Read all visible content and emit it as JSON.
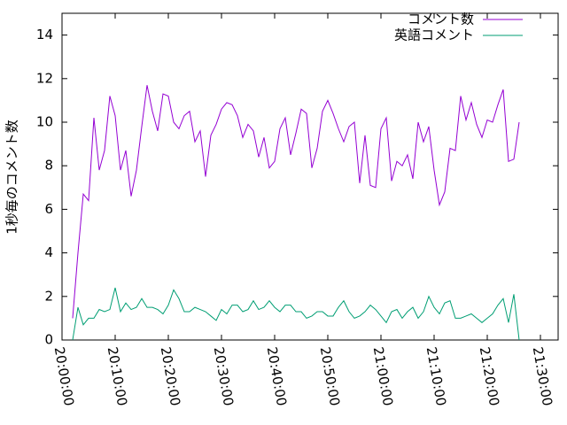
{
  "chart_data": {
    "type": "line",
    "y_label": "1秒毎のコメント数",
    "x": [
      "20:02:00",
      "20:03:00",
      "20:04:00",
      "20:05:00",
      "20:06:00",
      "20:07:00",
      "20:08:00",
      "20:09:00",
      "20:10:00",
      "20:11:00",
      "20:12:00",
      "20:13:00",
      "20:14:00",
      "20:15:00",
      "20:16:00",
      "20:17:00",
      "20:18:00",
      "20:19:00",
      "20:20:00",
      "20:21:00",
      "20:22:00",
      "20:23:00",
      "20:24:00",
      "20:25:00",
      "20:26:00",
      "20:27:00",
      "20:28:00",
      "20:29:00",
      "20:30:00",
      "20:31:00",
      "20:32:00",
      "20:33:00",
      "20:34:00",
      "20:35:00",
      "20:36:00",
      "20:37:00",
      "20:38:00",
      "20:39:00",
      "20:40:00",
      "20:41:00",
      "20:42:00",
      "20:43:00",
      "20:44:00",
      "20:45:00",
      "20:46:00",
      "20:47:00",
      "20:48:00",
      "20:49:00",
      "20:50:00",
      "20:51:00",
      "20:52:00",
      "20:53:00",
      "20:54:00",
      "20:55:00",
      "20:56:00",
      "20:57:00",
      "20:58:00",
      "20:59:00",
      "21:00:00",
      "21:01:00",
      "21:02:00",
      "21:03:00",
      "21:04:00",
      "21:05:00",
      "21:06:00",
      "21:07:00",
      "21:08:00",
      "21:09:00",
      "21:10:00",
      "21:11:00",
      "21:12:00",
      "21:13:00",
      "21:14:00",
      "21:15:00",
      "21:16:00",
      "21:17:00",
      "21:18:00",
      "21:19:00",
      "21:20:00",
      "21:21:00",
      "21:22:00",
      "21:23:00",
      "21:24:00",
      "21:25:00",
      "21:26:00"
    ],
    "series": [
      {
        "name": "コメント数",
        "color": "#9400d3",
        "values": [
          1.0,
          4.0,
          6.7,
          6.4,
          10.2,
          7.8,
          8.7,
          11.2,
          10.3,
          7.8,
          8.7,
          6.6,
          7.8,
          9.8,
          11.7,
          10.5,
          9.6,
          11.3,
          11.2,
          10.0,
          9.7,
          10.3,
          10.5,
          9.1,
          9.6,
          7.5,
          9.4,
          9.9,
          10.6,
          10.9,
          10.8,
          10.3,
          9.3,
          9.9,
          9.6,
          8.4,
          9.3,
          7.9,
          8.2,
          9.7,
          10.2,
          8.5,
          9.5,
          10.6,
          10.4,
          7.9,
          8.8,
          10.5,
          11.0,
          10.4,
          9.7,
          9.1,
          9.8,
          10.0,
          7.2,
          9.4,
          7.1,
          7.0,
          9.7,
          10.2,
          7.3,
          8.2,
          8.0,
          8.5,
          7.4,
          10.0,
          9.1,
          9.8,
          7.8,
          6.2,
          6.8,
          8.8,
          8.7,
          11.2,
          10.1,
          10.9,
          9.9,
          9.3,
          10.1,
          10.0,
          10.8,
          11.5,
          8.2,
          8.3,
          10.0
        ]
      },
      {
        "name": "英語コメント",
        "color": "#009e73",
        "values": [
          0,
          1.5,
          0.7,
          1.0,
          1.0,
          1.4,
          1.3,
          1.4,
          2.4,
          1.3,
          1.7,
          1.4,
          1.5,
          1.9,
          1.5,
          1.5,
          1.4,
          1.2,
          1.6,
          2.3,
          1.9,
          1.3,
          1.3,
          1.5,
          1.4,
          1.3,
          1.1,
          0.9,
          1.4,
          1.2,
          1.6,
          1.6,
          1.3,
          1.4,
          1.8,
          1.4,
          1.5,
          1.8,
          1.5,
          1.3,
          1.6,
          1.6,
          1.3,
          1.3,
          1.0,
          1.1,
          1.3,
          1.3,
          1.1,
          1.1,
          1.5,
          1.8,
          1.3,
          1.0,
          1.1,
          1.3,
          1.6,
          1.4,
          1.1,
          0.8,
          1.3,
          1.4,
          1.0,
          1.3,
          1.5,
          1.0,
          1.3,
          2.0,
          1.5,
          1.2,
          1.7,
          1.8,
          1.0,
          1.0,
          1.1,
          1.2,
          1.0,
          0.8,
          1.0,
          1.2,
          1.6,
          1.9,
          0.8,
          2.1,
          0
        ]
      }
    ],
    "xlim": [
      "20:00:00",
      "21:33:20"
    ],
    "xticks": [
      "20:00:00",
      "20:10:00",
      "20:20:00",
      "20:30:00",
      "20:40:00",
      "20:50:00",
      "21:00:00",
      "21:10:00",
      "21:20:00",
      "21:30:00"
    ],
    "ylim": [
      0,
      15
    ],
    "yticks": [
      0,
      2,
      4,
      6,
      8,
      10,
      12,
      14
    ],
    "legend": "top-right"
  }
}
